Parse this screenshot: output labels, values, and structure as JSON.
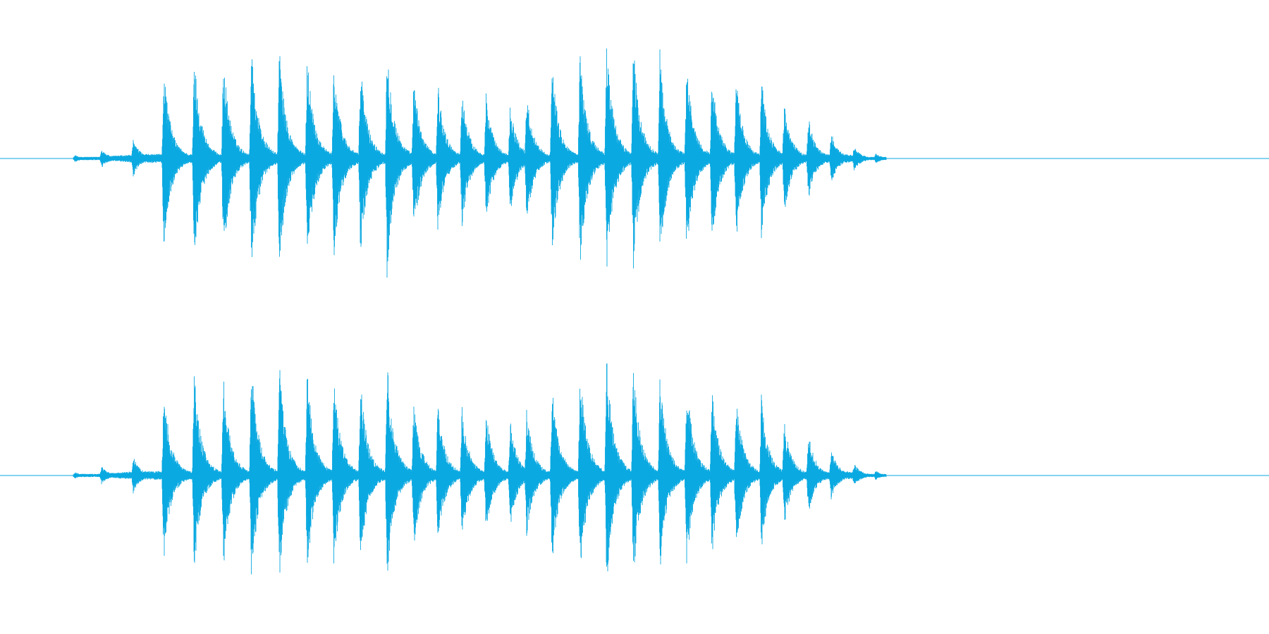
{
  "colors": {
    "background": "#ffffff",
    "waveform": "#0aa9e1"
  },
  "waveform": {
    "channels": [
      {
        "name": "",
        "label": ""
      },
      {
        "name": "",
        "label": ""
      }
    ],
    "sound_start": 0.059,
    "sound_end": 0.695,
    "envelope": [
      {
        "t": 0.059,
        "a": 0.03
      },
      {
        "t": 0.08,
        "a": 0.08
      },
      {
        "t": 0.105,
        "a": 0.16
      },
      {
        "t": 0.129,
        "a": 0.78
      },
      {
        "t": 0.153,
        "a": 0.88
      },
      {
        "t": 0.176,
        "a": 0.86
      },
      {
        "t": 0.198,
        "a": 0.98
      },
      {
        "t": 0.22,
        "a": 0.95
      },
      {
        "t": 0.242,
        "a": 0.9
      },
      {
        "t": 0.263,
        "a": 0.84
      },
      {
        "t": 0.284,
        "a": 0.82
      },
      {
        "t": 0.305,
        "a": 0.98
      },
      {
        "t": 0.326,
        "a": 0.68
      },
      {
        "t": 0.345,
        "a": 0.64
      },
      {
        "t": 0.364,
        "a": 0.58
      },
      {
        "t": 0.383,
        "a": 0.54
      },
      {
        "t": 0.402,
        "a": 0.48
      },
      {
        "t": 0.415,
        "a": 0.56
      },
      {
        "t": 0.435,
        "a": 0.8
      },
      {
        "t": 0.457,
        "a": 0.94
      },
      {
        "t": 0.478,
        "a": 1.0
      },
      {
        "t": 0.499,
        "a": 0.96
      },
      {
        "t": 0.52,
        "a": 0.88
      },
      {
        "t": 0.541,
        "a": 0.84
      },
      {
        "t": 0.561,
        "a": 0.74
      },
      {
        "t": 0.58,
        "a": 0.7
      },
      {
        "t": 0.6,
        "a": 0.68
      },
      {
        "t": 0.618,
        "a": 0.48
      },
      {
        "t": 0.637,
        "a": 0.36
      },
      {
        "t": 0.655,
        "a": 0.22
      },
      {
        "t": 0.673,
        "a": 0.1
      },
      {
        "t": 0.69,
        "a": 0.04
      }
    ]
  }
}
